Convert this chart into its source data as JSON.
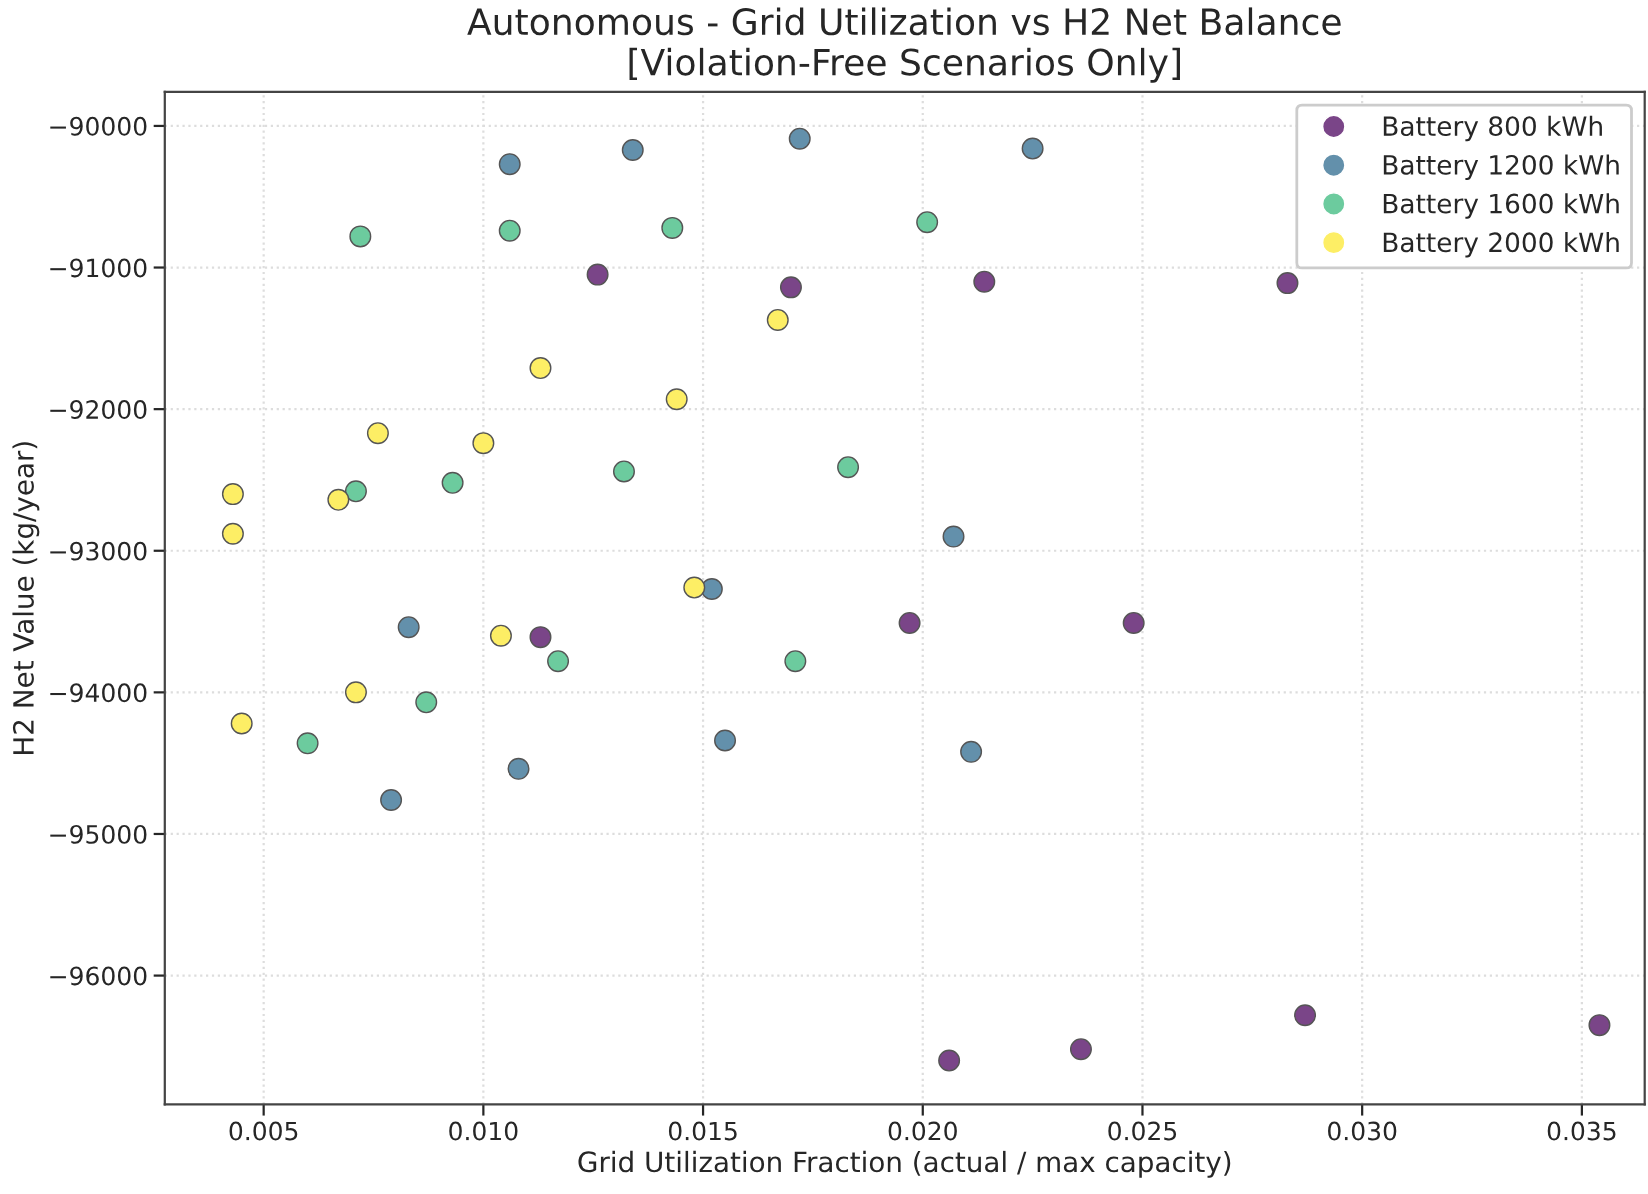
{
  "chart_data": {
    "type": "scatter",
    "title": "Autonomous - Grid Utilization vs H2 Net Balance\n[Violation-Free Scenarios Only]",
    "xlabel": "Grid Utilization Fraction (actual / max capacity)",
    "ylabel": "H2 Net Value (kg/year)",
    "xlim": [
      0.00275,
      0.03643
    ],
    "xticks": [
      {
        "value": 0.005,
        "label": "0.005"
      },
      {
        "value": 0.01,
        "label": "0.010"
      },
      {
        "value": 0.015,
        "label": "0.015"
      },
      {
        "value": 0.02,
        "label": "0.020"
      },
      {
        "value": 0.025,
        "label": "0.025"
      },
      {
        "value": 0.03,
        "label": "0.030"
      },
      {
        "value": 0.035,
        "label": "0.035"
      }
    ],
    "ylim": [
      -96910,
      -89760
    ],
    "yticks": [
      {
        "value": -96000,
        "label": "−96000"
      },
      {
        "value": -95000,
        "label": "−95000"
      },
      {
        "value": -94000,
        "label": "−94000"
      },
      {
        "value": -93000,
        "label": "−93000"
      },
      {
        "value": -92000,
        "label": "−92000"
      },
      {
        "value": -91000,
        "label": "−91000"
      },
      {
        "value": -90000,
        "label": "−90000"
      }
    ],
    "grid": true,
    "legend": "top right",
    "marker": "circle",
    "series": [
      {
        "name": "Battery 800 kWh",
        "color": "#7a4588",
        "x": [
          0.0126,
          0.017,
          0.0214,
          0.0283,
          0.0113,
          0.0197,
          0.0248,
          0.0206,
          0.0236,
          0.0287,
          0.0354
        ],
        "values": [
          -91050,
          -91140,
          -91100,
          -91110,
          -93610,
          -93510,
          -93510,
          -96600,
          -96520,
          -96280,
          -96350
        ]
      },
      {
        "name": "Battery 1200 kWh",
        "color": "#6390ab",
        "x": [
          0.0106,
          0.0134,
          0.0172,
          0.0225,
          0.0207,
          0.0152,
          0.0083,
          0.0155,
          0.0108,
          0.0079,
          0.0211
        ],
        "values": [
          -90270,
          -90170,
          -90090,
          -90160,
          -92900,
          -93270,
          -93540,
          -94340,
          -94540,
          -94760,
          -94420
        ]
      },
      {
        "name": "Battery 1600 kWh",
        "color": "#6ccb9e",
        "x": [
          0.0072,
          0.0106,
          0.0143,
          0.0201,
          0.0071,
          0.0093,
          0.0132,
          0.0183,
          0.0087,
          0.006,
          0.0117,
          0.0171
        ],
        "values": [
          -90780,
          -90740,
          -90720,
          -90680,
          -92580,
          -92520,
          -92440,
          -92410,
          -94070,
          -94360,
          -93780,
          -93780
        ]
      },
      {
        "name": "Battery 2000 kWh",
        "color": "#fdee65",
        "x": [
          0.0043,
          0.0043,
          0.0067,
          0.0076,
          0.01,
          0.0113,
          0.0144,
          0.0167,
          0.0148,
          0.0104,
          0.0071,
          0.0045
        ],
        "values": [
          -92600,
          -92880,
          -92640,
          -92170,
          -92240,
          -91710,
          -91930,
          -91370,
          -93260,
          -93600,
          -94000,
          -94220
        ]
      }
    ]
  }
}
